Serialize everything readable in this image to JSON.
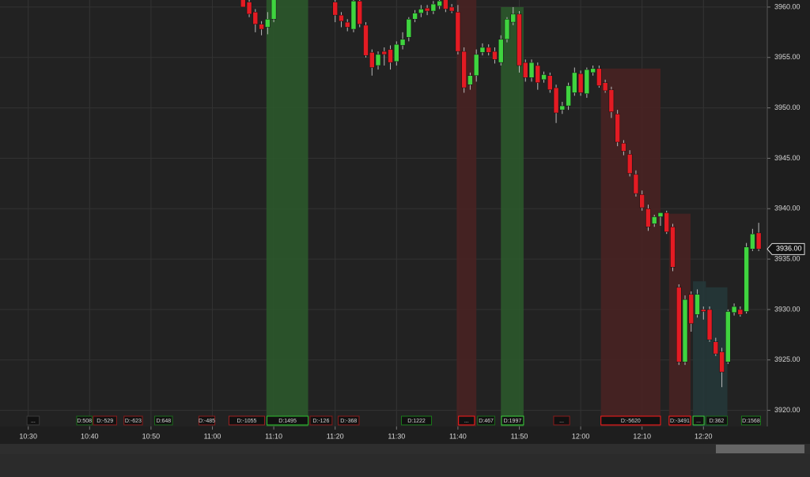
{
  "chart_data": {
    "type": "candlestick",
    "xlim": [
      625.4,
      750.4
    ],
    "ylim": [
      3918.4,
      3960.7
    ],
    "xticks": [
      {
        "value": 630,
        "label": "10:30"
      },
      {
        "value": 640,
        "label": "10:40"
      },
      {
        "value": 650,
        "label": "10:50"
      },
      {
        "value": 660,
        "label": "11:00"
      },
      {
        "value": 670,
        "label": "11:10"
      },
      {
        "value": 680,
        "label": "11:20"
      },
      {
        "value": 690,
        "label": "11:30"
      },
      {
        "value": 700,
        "label": "11:40"
      },
      {
        "value": 710,
        "label": "11:50"
      },
      {
        "value": 720,
        "label": "12:00"
      },
      {
        "value": 730,
        "label": "12:10"
      },
      {
        "value": 740,
        "label": "12:20"
      }
    ],
    "yticks": [
      {
        "value": 3920,
        "label": "3920.00"
      },
      {
        "value": 3925,
        "label": "3925.00"
      },
      {
        "value": 3930,
        "label": "3930.00"
      },
      {
        "value": 3935,
        "label": "3935.00"
      },
      {
        "value": 3940,
        "label": "3940.00"
      },
      {
        "value": 3945,
        "label": "3945.00"
      },
      {
        "value": 3950,
        "label": "3950.00"
      },
      {
        "value": 3955,
        "label": "3955.00"
      },
      {
        "value": 3960,
        "label": "3960.00"
      }
    ],
    "grid": true,
    "up_color": "#3fd43f",
    "down_color": "#e31b23",
    "last_price": {
      "value": 3936,
      "label": "3936.00"
    },
    "x": [
      665,
      666,
      667,
      668,
      669,
      670,
      680,
      681,
      682,
      683,
      684,
      685,
      686,
      687,
      688,
      689,
      690,
      691,
      692,
      693,
      694,
      695,
      696,
      697,
      698,
      699,
      700,
      701,
      702,
      703,
      704,
      705,
      706,
      707,
      708,
      709,
      710,
      711,
      712,
      713,
      714,
      715,
      716,
      717,
      718,
      719,
      720,
      721,
      722,
      723,
      724,
      725,
      726,
      727,
      728,
      729,
      730,
      731,
      732,
      733,
      734,
      735,
      736,
      737,
      738,
      739,
      740,
      741,
      742,
      743,
      744,
      745,
      746,
      747,
      748,
      749
    ],
    "open": [
      3961,
      3960.5,
      3959.5,
      3958.3,
      3958,
      3958.8,
      3960.5,
      3959.2,
      3958.5,
      3957.8,
      3960.6,
      3958.2,
      3955.5,
      3954.2,
      3955.6,
      3955.8,
      3954.6,
      3956.2,
      3957,
      3958.8,
      3959.4,
      3959.9,
      3959.6,
      3960.1,
      3960.9,
      3960,
      3959.5,
      3955.6,
      3952.3,
      3953.2,
      3955.5,
      3956,
      3955.6,
      3954.5,
      3956.8,
      3958.5,
      3959.3,
      3954.5,
      3953,
      3954.2,
      3952.8,
      3953.2,
      3952,
      3949.8,
      3950.2,
      3951.5,
      3953.4,
      3951.4,
      3953.5,
      3953.9,
      3952.5,
      3951.8,
      3949.4,
      3946.5,
      3945.4,
      3943.4,
      3941.4,
      3940,
      3938.5,
      3939.2,
      3939.6,
      3938.2,
      3932.2,
      3924.8,
      3931.5,
      3929.5,
      3930,
      3930,
      3926.8,
      3925.8,
      3924.8,
      3929.7,
      3930,
      3929.8,
      3936,
      3937.6
    ],
    "high": [
      3961.5,
      3960.8,
      3959.8,
      3958.6,
      3959.5,
      3961,
      3961,
      3959.5,
      3958.8,
      3960.9,
      3960.9,
      3958.5,
      3955.8,
      3955.6,
      3956,
      3956.2,
      3956.6,
      3957.5,
      3959,
      3959.7,
      3960.2,
      3960.2,
      3960.6,
      3960.8,
      3961,
      3960.3,
      3960.2,
      3956,
      3953.5,
      3955.8,
      3956.4,
      3956.3,
      3956,
      3957.2,
      3959,
      3960,
      3959.6,
      3954.8,
      3954.8,
      3954.5,
      3953.6,
      3953.5,
      3952.3,
      3950.6,
      3952.5,
      3954,
      3953.7,
      3954,
      3954.2,
      3954.2,
      3952.8,
      3952.1,
      3949.8,
      3946.8,
      3945.8,
      3943.8,
      3941.8,
      3940.4,
      3939.4,
      3939.6,
      3939.8,
      3938.5,
      3932.5,
      3931.4,
      3931.8,
      3932,
      3930.3,
      3930.3,
      3927.2,
      3926.2,
      3930,
      3930.6,
      3930.3,
      3936.6,
      3938,
      3938.6
    ],
    "low": [
      3960,
      3959,
      3957.5,
      3957.2,
      3957.3,
      3958.5,
      3958.5,
      3958,
      3957.6,
      3957.5,
      3958,
      3955,
      3953.2,
      3953.8,
      3954.2,
      3953.8,
      3954.2,
      3955.8,
      3956.6,
      3958.5,
      3959,
      3959.2,
      3959.3,
      3959.8,
      3959.5,
      3959.4,
      3955.3,
      3951.5,
      3951.8,
      3952.6,
      3955.2,
      3955.2,
      3954.4,
      3954.2,
      3956.5,
      3958.2,
      3953.5,
      3952.6,
      3952.6,
      3951.8,
      3952.5,
      3951.5,
      3948.5,
      3949.4,
      3949.8,
      3951.2,
      3951.2,
      3951,
      3953.2,
      3952,
      3951.5,
      3949,
      3946.2,
      3945.3,
      3943.2,
      3941.2,
      3939.8,
      3937.8,
      3938.2,
      3938.3,
      3937.5,
      3933.8,
      3924.5,
      3924.5,
      3927.8,
      3929.2,
      3929,
      3926.8,
      3925.4,
      3922.3,
      3924.6,
      3929.4,
      3929.3,
      3929.6,
      3935.8,
      3935.8
    ],
    "close": [
      3960,
      3959.3,
      3958.3,
      3957.8,
      3958.8,
      3960.8,
      3959.2,
      3958.6,
      3958,
      3960.6,
      3958.3,
      3955.2,
      3954,
      3955.3,
      3955.3,
      3954.5,
      3956.3,
      3956.8,
      3958.8,
      3959.4,
      3959.8,
      3959.6,
      3960.3,
      3960.6,
      3959.8,
      3959.6,
      3955.6,
      3952,
      3953.2,
      3955.3,
      3956,
      3955.5,
      3954.8,
      3956.8,
      3958.8,
      3959.3,
      3954.2,
      3953,
      3954.5,
      3952.5,
      3953.3,
      3951.8,
      3949.5,
      3950.2,
      3952.2,
      3953.5,
      3951.5,
      3953.8,
      3953.9,
      3952.2,
      3951.7,
      3949.6,
      3946.6,
      3945.7,
      3943.5,
      3941.5,
      3940.1,
      3938.2,
      3939.2,
      3939.6,
      3937.7,
      3934.2,
      3924.8,
      3931,
      3928.6,
      3931.5,
      3929.8,
      3927,
      3925.6,
      3923.8,
      3929.8,
      3930.3,
      3929.5,
      3936.2,
      3937.5,
      3936
    ],
    "zones": [
      {
        "start": 668.8,
        "end": 675.6,
        "top": 3961,
        "color": "#2c5a2c"
      },
      {
        "start": 699.8,
        "end": 703,
        "top": 3961,
        "color": "#4a2222"
      },
      {
        "start": 707,
        "end": 710.7,
        "top": 3960,
        "color": "#2c5a2c"
      },
      {
        "start": 723.3,
        "end": 733,
        "top": 3953.9,
        "color": "#4a2222"
      },
      {
        "start": 734.4,
        "end": 737.9,
        "top": 3939.5,
        "color": "#4a2222"
      },
      {
        "start": 738.3,
        "end": 740.4,
        "top": 3932.8,
        "color": "#24383a"
      },
      {
        "start": 740.4,
        "end": 743.9,
        "top": 3932.2,
        "color": "#24383a"
      }
    ],
    "deltas": [
      {
        "label": "...",
        "start": 629.8,
        "end": 631.8,
        "color": "#3a3a3a"
      },
      {
        "label": "D:508",
        "start": 637.9,
        "end": 640.4,
        "color": "#1a6a1a"
      },
      {
        "label": "D:-529",
        "start": 640.6,
        "end": 644.4,
        "color": "#8a1a1a"
      },
      {
        "label": "D:-623",
        "start": 645.6,
        "end": 648.6,
        "color": "#8a1a1a"
      },
      {
        "label": "D:648",
        "start": 650.6,
        "end": 653.5,
        "color": "#1a6a1a"
      },
      {
        "label": "D:-485",
        "start": 657.8,
        "end": 660.4,
        "color": "#8a1a1a"
      },
      {
        "label": "D:-1055",
        "start": 662.7,
        "end": 668.5,
        "color": "#a02020"
      },
      {
        "label": "D:1495",
        "start": 668.9,
        "end": 675.6,
        "color": "#2fbf2f"
      },
      {
        "label": "D:-126",
        "start": 675.9,
        "end": 679.5,
        "color": "#8a1a1a"
      },
      {
        "label": "D:-368",
        "start": 680.5,
        "end": 683.9,
        "color": "#8a1a1a"
      },
      {
        "label": "D:1222",
        "start": 690.8,
        "end": 695.7,
        "color": "#1a7a1a"
      },
      {
        "label": "...",
        "start": 700.1,
        "end": 702.7,
        "color": "#ff1a1a"
      },
      {
        "label": "D:467",
        "start": 703.2,
        "end": 706,
        "color": "#1a6a1a"
      },
      {
        "label": "D:1997",
        "start": 707.1,
        "end": 710.7,
        "color": "#3ad23a"
      },
      {
        "label": "...",
        "start": 715.6,
        "end": 718.2,
        "color": "#8a1a1a"
      },
      {
        "label": "D:-5620",
        "start": 723.3,
        "end": 733,
        "color": "#ff1a1a"
      },
      {
        "label": "D:-3491",
        "start": 734.4,
        "end": 737.9,
        "color": "#ff1a1a"
      },
      {
        "label": "...",
        "start": 738.3,
        "end": 740.1,
        "color": "#3ad23a"
      },
      {
        "label": "D:362",
        "start": 740.4,
        "end": 743.9,
        "color": "#1a6a1a"
      },
      {
        "label": "D:1568",
        "start": 746.2,
        "end": 749.3,
        "color": "#1a7a1a"
      }
    ]
  }
}
